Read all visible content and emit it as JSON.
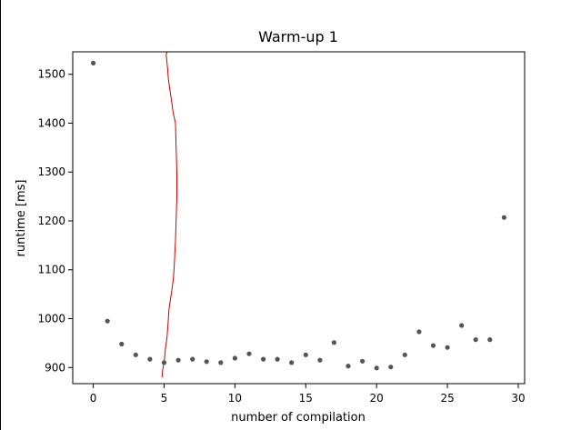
{
  "chart_data": {
    "type": "scatter",
    "title": "Warm-up 1",
    "xlabel": "number of compilation",
    "ylabel": "runtime [ms]",
    "xlim": [
      -1.45,
      30.45
    ],
    "ylim": [
      867,
      1546
    ],
    "xticks": [
      0,
      5,
      10,
      15,
      20,
      25,
      30
    ],
    "yticks": [
      900,
      1000,
      1100,
      1200,
      1300,
      1400,
      1500
    ],
    "grid": false,
    "legend": "none",
    "point_color": "#555555",
    "line_color": "#cc0000",
    "series": [
      {
        "x": [
          0,
          1,
          2,
          3,
          4,
          5,
          6,
          7,
          8,
          9,
          10,
          11,
          12,
          13,
          14,
          15,
          16,
          17,
          18,
          19,
          20,
          21,
          22,
          23,
          24,
          25,
          26,
          27,
          28,
          29
        ],
        "y": [
          1523,
          995,
          948,
          926,
          917,
          910,
          915,
          917,
          912,
          910,
          919,
          928,
          917,
          917,
          910,
          926,
          915,
          951,
          903,
          913,
          899,
          901,
          926,
          973,
          945,
          941,
          986,
          957,
          957,
          1207
        ]
      }
    ],
    "density_line": {
      "x": [
        4.85,
        4.9,
        5.0,
        5.05,
        5.1,
        5.2,
        5.25,
        5.3,
        5.35,
        5.45,
        5.55,
        5.65,
        5.7,
        5.75,
        5.8,
        5.85,
        5.9,
        5.9,
        5.85,
        5.8,
        5.65,
        5.5,
        5.4,
        5.3,
        5.25,
        5.2,
        5.15,
        5.2
      ],
      "y": [
        880,
        895,
        910,
        925,
        940,
        960,
        980,
        1000,
        1020,
        1040,
        1060,
        1080,
        1100,
        1130,
        1160,
        1200,
        1250,
        1300,
        1350,
        1400,
        1420,
        1450,
        1470,
        1490,
        1510,
        1525,
        1540,
        1545
      ]
    }
  }
}
